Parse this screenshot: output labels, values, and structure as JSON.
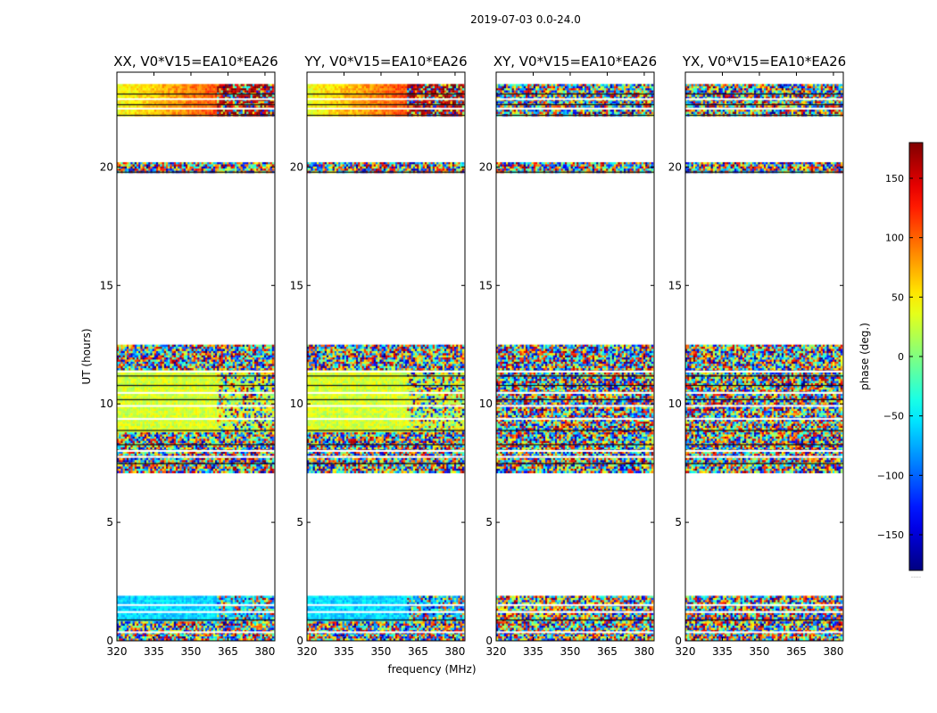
{
  "figure": {
    "suptitle": "2019-07-03 0.0-24.0",
    "xlabel": "frequency (MHz)",
    "ylabel": "UT (hours)"
  },
  "chart_data": {
    "type": "heatmap",
    "xlim": [
      320,
      384
    ],
    "ylim": [
      0,
      24
    ],
    "xticks": [
      320,
      335,
      350,
      365,
      380
    ],
    "yticks": [
      0,
      5,
      10,
      15,
      20
    ],
    "panels": [
      {
        "title": "XX, V0*V15=EA10*EA26",
        "kind": "parallel"
      },
      {
        "title": "YY, V0*V15=EA10*EA26",
        "kind": "parallel"
      },
      {
        "title": "XY, V0*V15=EA10*EA26",
        "kind": "cross"
      },
      {
        "title": "YX, V0*V15=EA10*EA26",
        "kind": "cross"
      }
    ],
    "data_blocks_hours": [
      [
        0.0,
        1.9
      ],
      [
        7.1,
        12.5
      ],
      [
        19.8,
        20.2
      ],
      [
        22.2,
        23.5
      ]
    ],
    "phase_trends": [
      {
        "hours": [
          0.9,
          1.9
        ],
        "phase_deg": -60,
        "note": "coherent band, parallel hands"
      },
      {
        "hours": [
          8.8,
          11.5
        ],
        "phase_deg": 30,
        "note": "coherent band, parallel hands"
      },
      {
        "hours": [
          22.2,
          23.5
        ],
        "phase_deg": [
          40,
          150
        ],
        "note": "phase ramps with frequency"
      }
    ],
    "colorbar": {
      "label": "phase (deg.)",
      "range": [
        -180,
        180
      ],
      "ticks": [
        -150,
        -100,
        -50,
        0,
        50,
        100,
        150
      ],
      "tick_labels": [
        "−150",
        "−100",
        "−50",
        "0",
        "50",
        "100",
        "150"
      ],
      "colormap": "jet",
      "footer": "....."
    }
  }
}
